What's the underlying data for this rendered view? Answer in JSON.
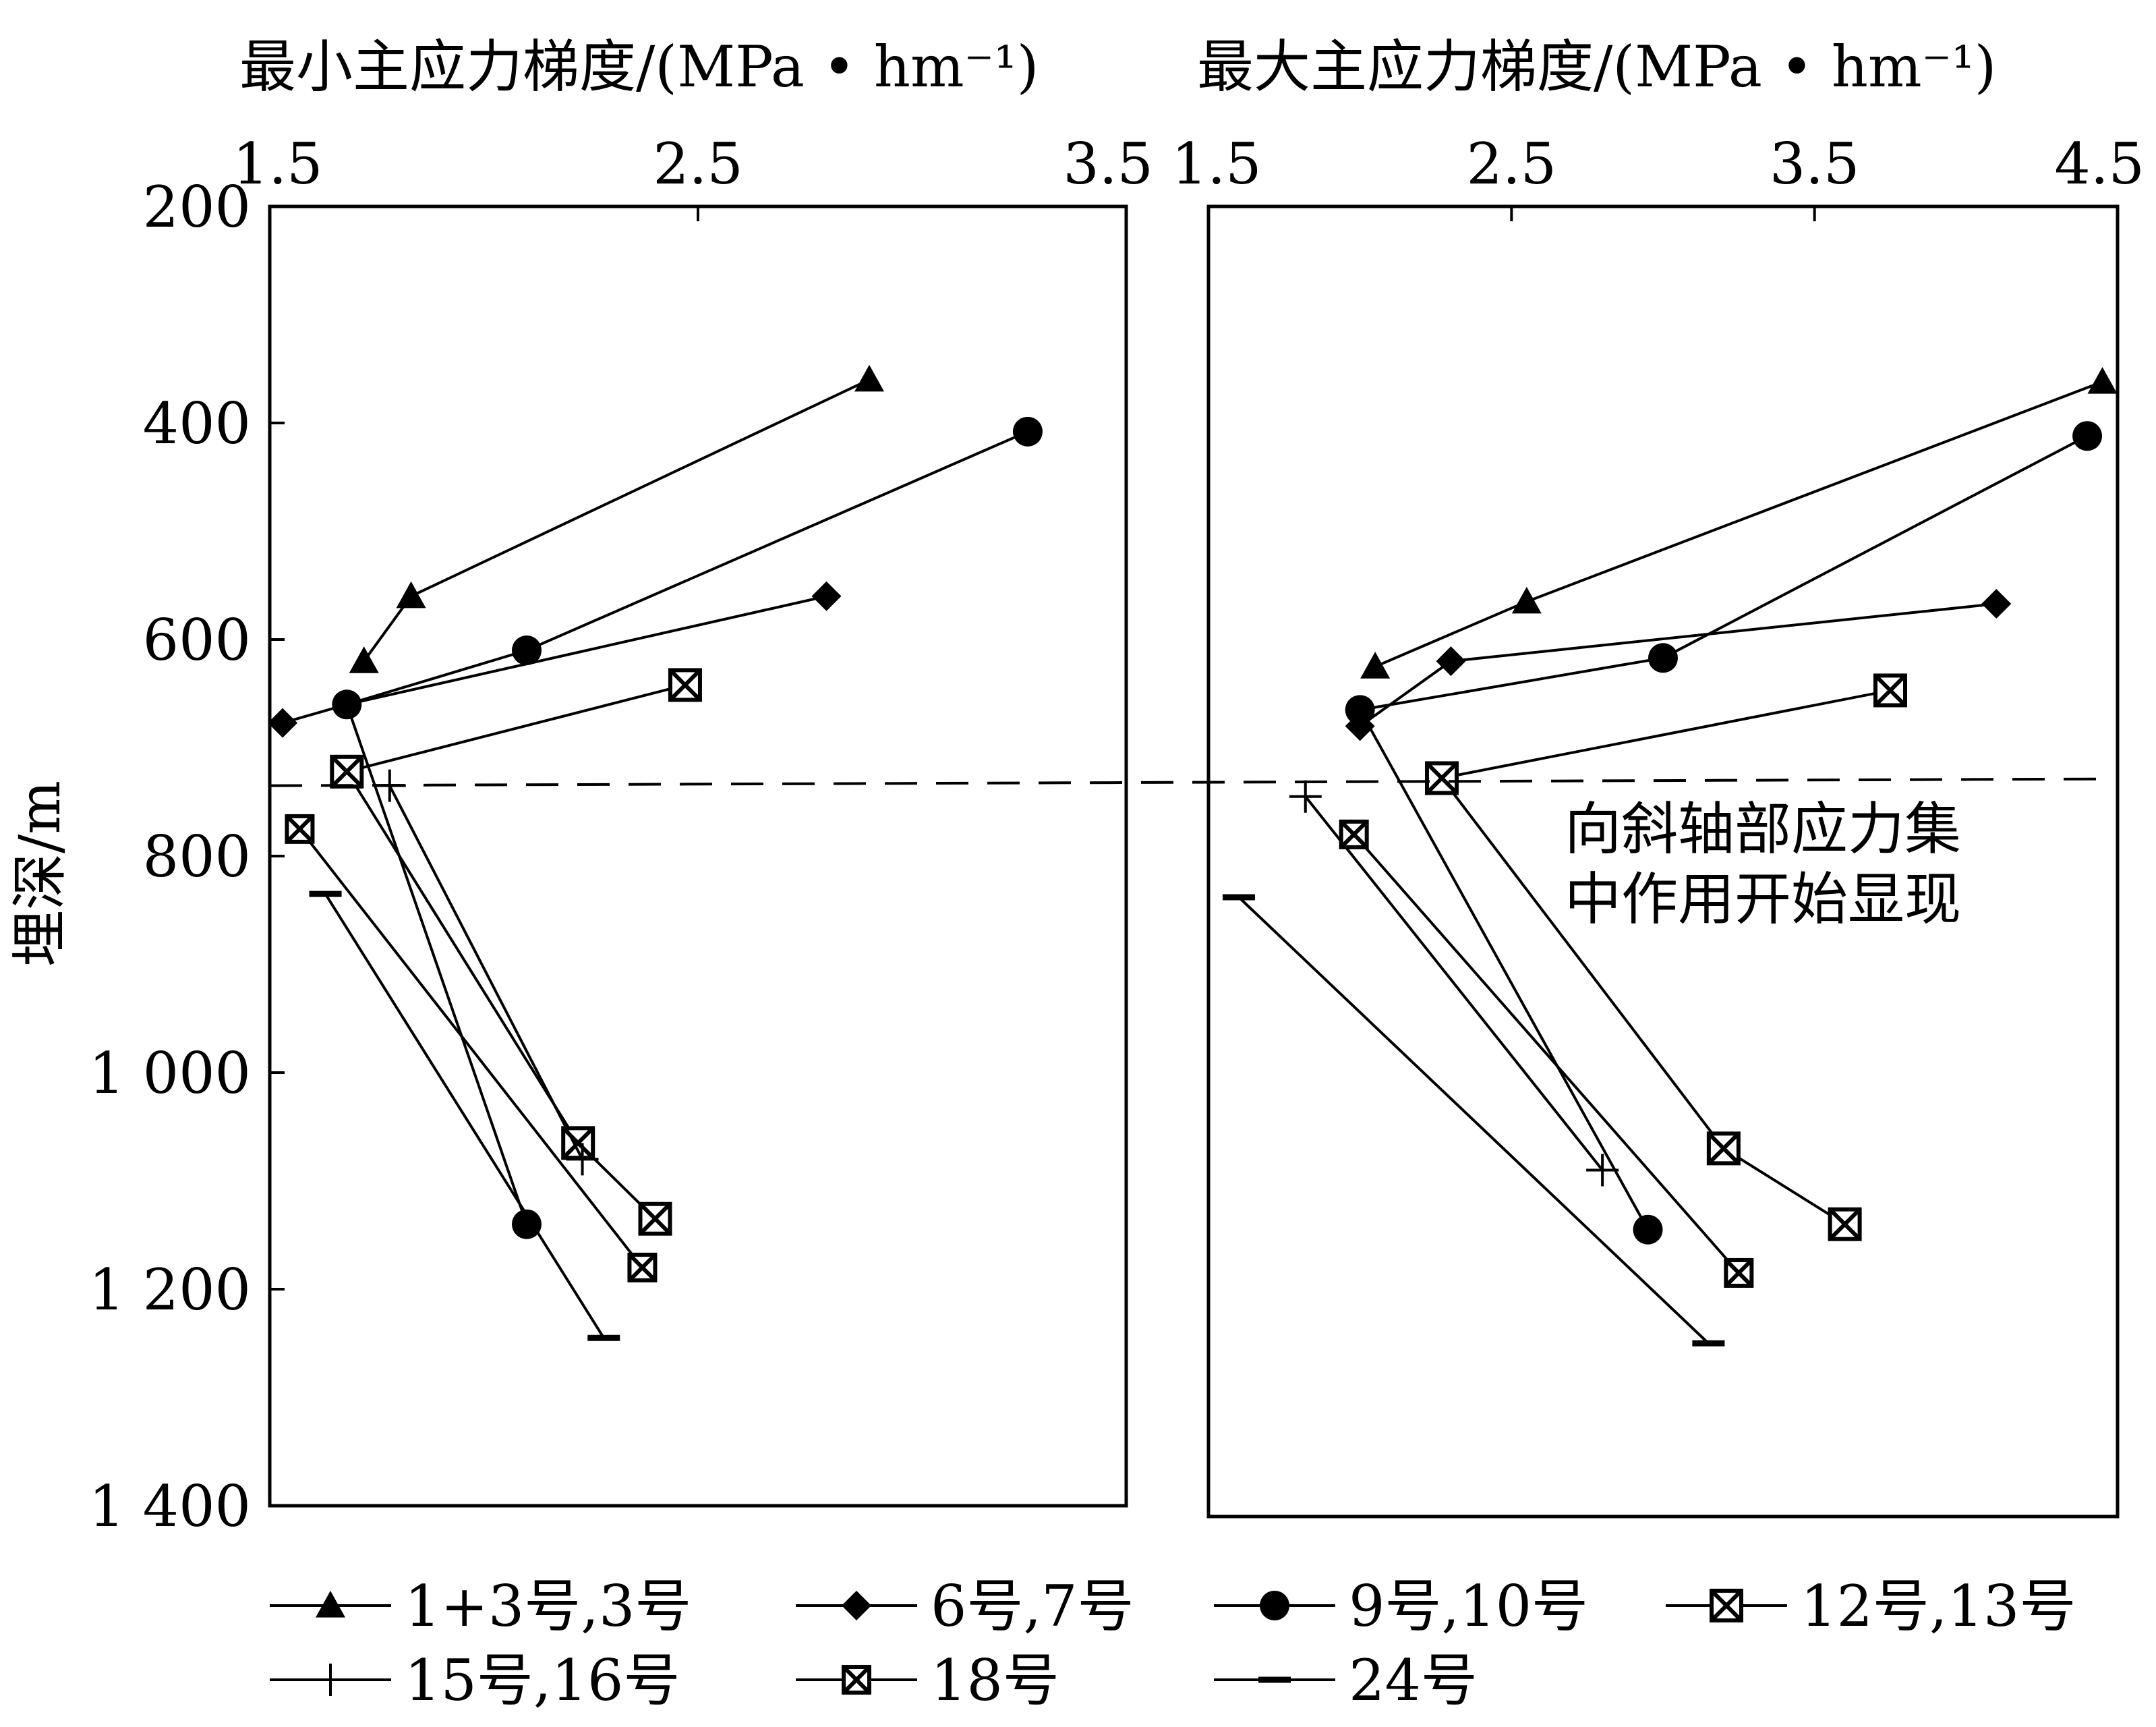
{
  "chart_data": [
    {
      "type": "line",
      "title": "最小主应力梯度/(MPa • hm⁻¹)",
      "xlim": [
        1.5,
        3.5
      ],
      "xticks": [
        "1.5",
        "2.5",
        "3.5"
      ],
      "xtick_values": [
        1.5,
        2.5,
        3.5
      ],
      "xaxis_position": "top",
      "ylim": [
        200,
        1400
      ],
      "y_inverted": true,
      "series": [
        {
          "name": "1+3号,3号",
          "marker": "triangle",
          "x": [
            1.72,
            1.83,
            2.9
          ],
          "y": [
            620,
            560,
            360
          ]
        },
        {
          "name": "6号,7号",
          "marker": "diamond",
          "x": [
            1.53,
            1.68,
            2.8
          ],
          "y": [
            677,
            660,
            560
          ]
        },
        {
          "name": "9号,10号",
          "marker": "circle",
          "x": [
            2.1,
            1.68,
            2.1,
            3.27
          ],
          "y": [
            1140,
            660,
            610,
            408
          ]
        },
        {
          "name": "12号,13号",
          "marker": "box-x",
          "x": [
            2.4,
            2.22,
            1.68,
            2.47
          ],
          "y": [
            1135,
            1065,
            722,
            642
          ]
        },
        {
          "name": "15号,16号",
          "marker": "plus",
          "x": [
            1.78,
            2.23
          ],
          "y": [
            735,
            1080
          ]
        },
        {
          "name": "18号",
          "marker": "box-x-small",
          "x": [
            1.57,
            2.37
          ],
          "y": [
            775,
            1180
          ]
        },
        {
          "name": "24号",
          "marker": "dash",
          "x": [
            1.63,
            2.28
          ],
          "y": [
            835,
            1245
          ]
        }
      ]
    },
    {
      "type": "line",
      "title": "最大主应力梯度/(MPa • hm⁻¹)",
      "xlim": [
        1.5,
        4.5
      ],
      "xticks": [
        "1.5",
        "2.5",
        "3.5",
        "4.5"
      ],
      "xtick_values": [
        1.5,
        2.5,
        3.5,
        4.5
      ],
      "xaxis_position": "top",
      "ylim": [
        200,
        1400
      ],
      "y_inverted": true,
      "series": [
        {
          "name": "1+3号,3号",
          "marker": "triangle",
          "x": [
            2.05,
            2.55,
            4.45
          ],
          "y": [
            625,
            565,
            362
          ]
        },
        {
          "name": "6号,7号",
          "marker": "diamond",
          "x": [
            2.0,
            2.3,
            4.1
          ],
          "y": [
            680,
            620,
            567
          ]
        },
        {
          "name": "9号,10号",
          "marker": "circle",
          "x": [
            2.95,
            2.0,
            3.0,
            4.4
          ],
          "y": [
            1145,
            665,
            617,
            412
          ]
        },
        {
          "name": "12号,13号",
          "marker": "box-x",
          "x": [
            3.6,
            3.2,
            2.27,
            3.75
          ],
          "y": [
            1140,
            1070,
            728,
            647
          ]
        },
        {
          "name": "15号,16号",
          "marker": "plus",
          "x": [
            1.82,
            2.8
          ],
          "y": [
            745,
            1090
          ]
        },
        {
          "name": "18号",
          "marker": "box-x-small",
          "x": [
            1.98,
            3.25
          ],
          "y": [
            780,
            1185
          ]
        },
        {
          "name": "24号",
          "marker": "dash",
          "x": [
            1.6,
            3.15
          ],
          "y": [
            838,
            1250
          ]
        }
      ]
    }
  ],
  "y_axis": {
    "label": "埋深/m",
    "ticks": [
      "200",
      "400",
      "600",
      "800",
      "1 000",
      "1 200",
      "1 400"
    ],
    "tick_values": [
      200,
      400,
      600,
      800,
      1000,
      1200,
      1400
    ]
  },
  "reference_line": {
    "y": 735,
    "style": "dashed"
  },
  "annotation": {
    "line1": "向斜轴部应力集",
    "line2": "中作用开始显现"
  },
  "legend": {
    "placement": "bottom",
    "items": [
      {
        "label": "1+3号,3号",
        "marker": "triangle"
      },
      {
        "label": "6号,7号",
        "marker": "diamond"
      },
      {
        "label": "9号,10号",
        "marker": "circle"
      },
      {
        "label": "12号,13号",
        "marker": "box-x"
      },
      {
        "label": "15号,16号",
        "marker": "plus"
      },
      {
        "label": "18号",
        "marker": "box-x-small"
      },
      {
        "label": "24号",
        "marker": "dash"
      }
    ]
  },
  "colors": {
    "line": "#000000",
    "background": "#ffffff"
  }
}
